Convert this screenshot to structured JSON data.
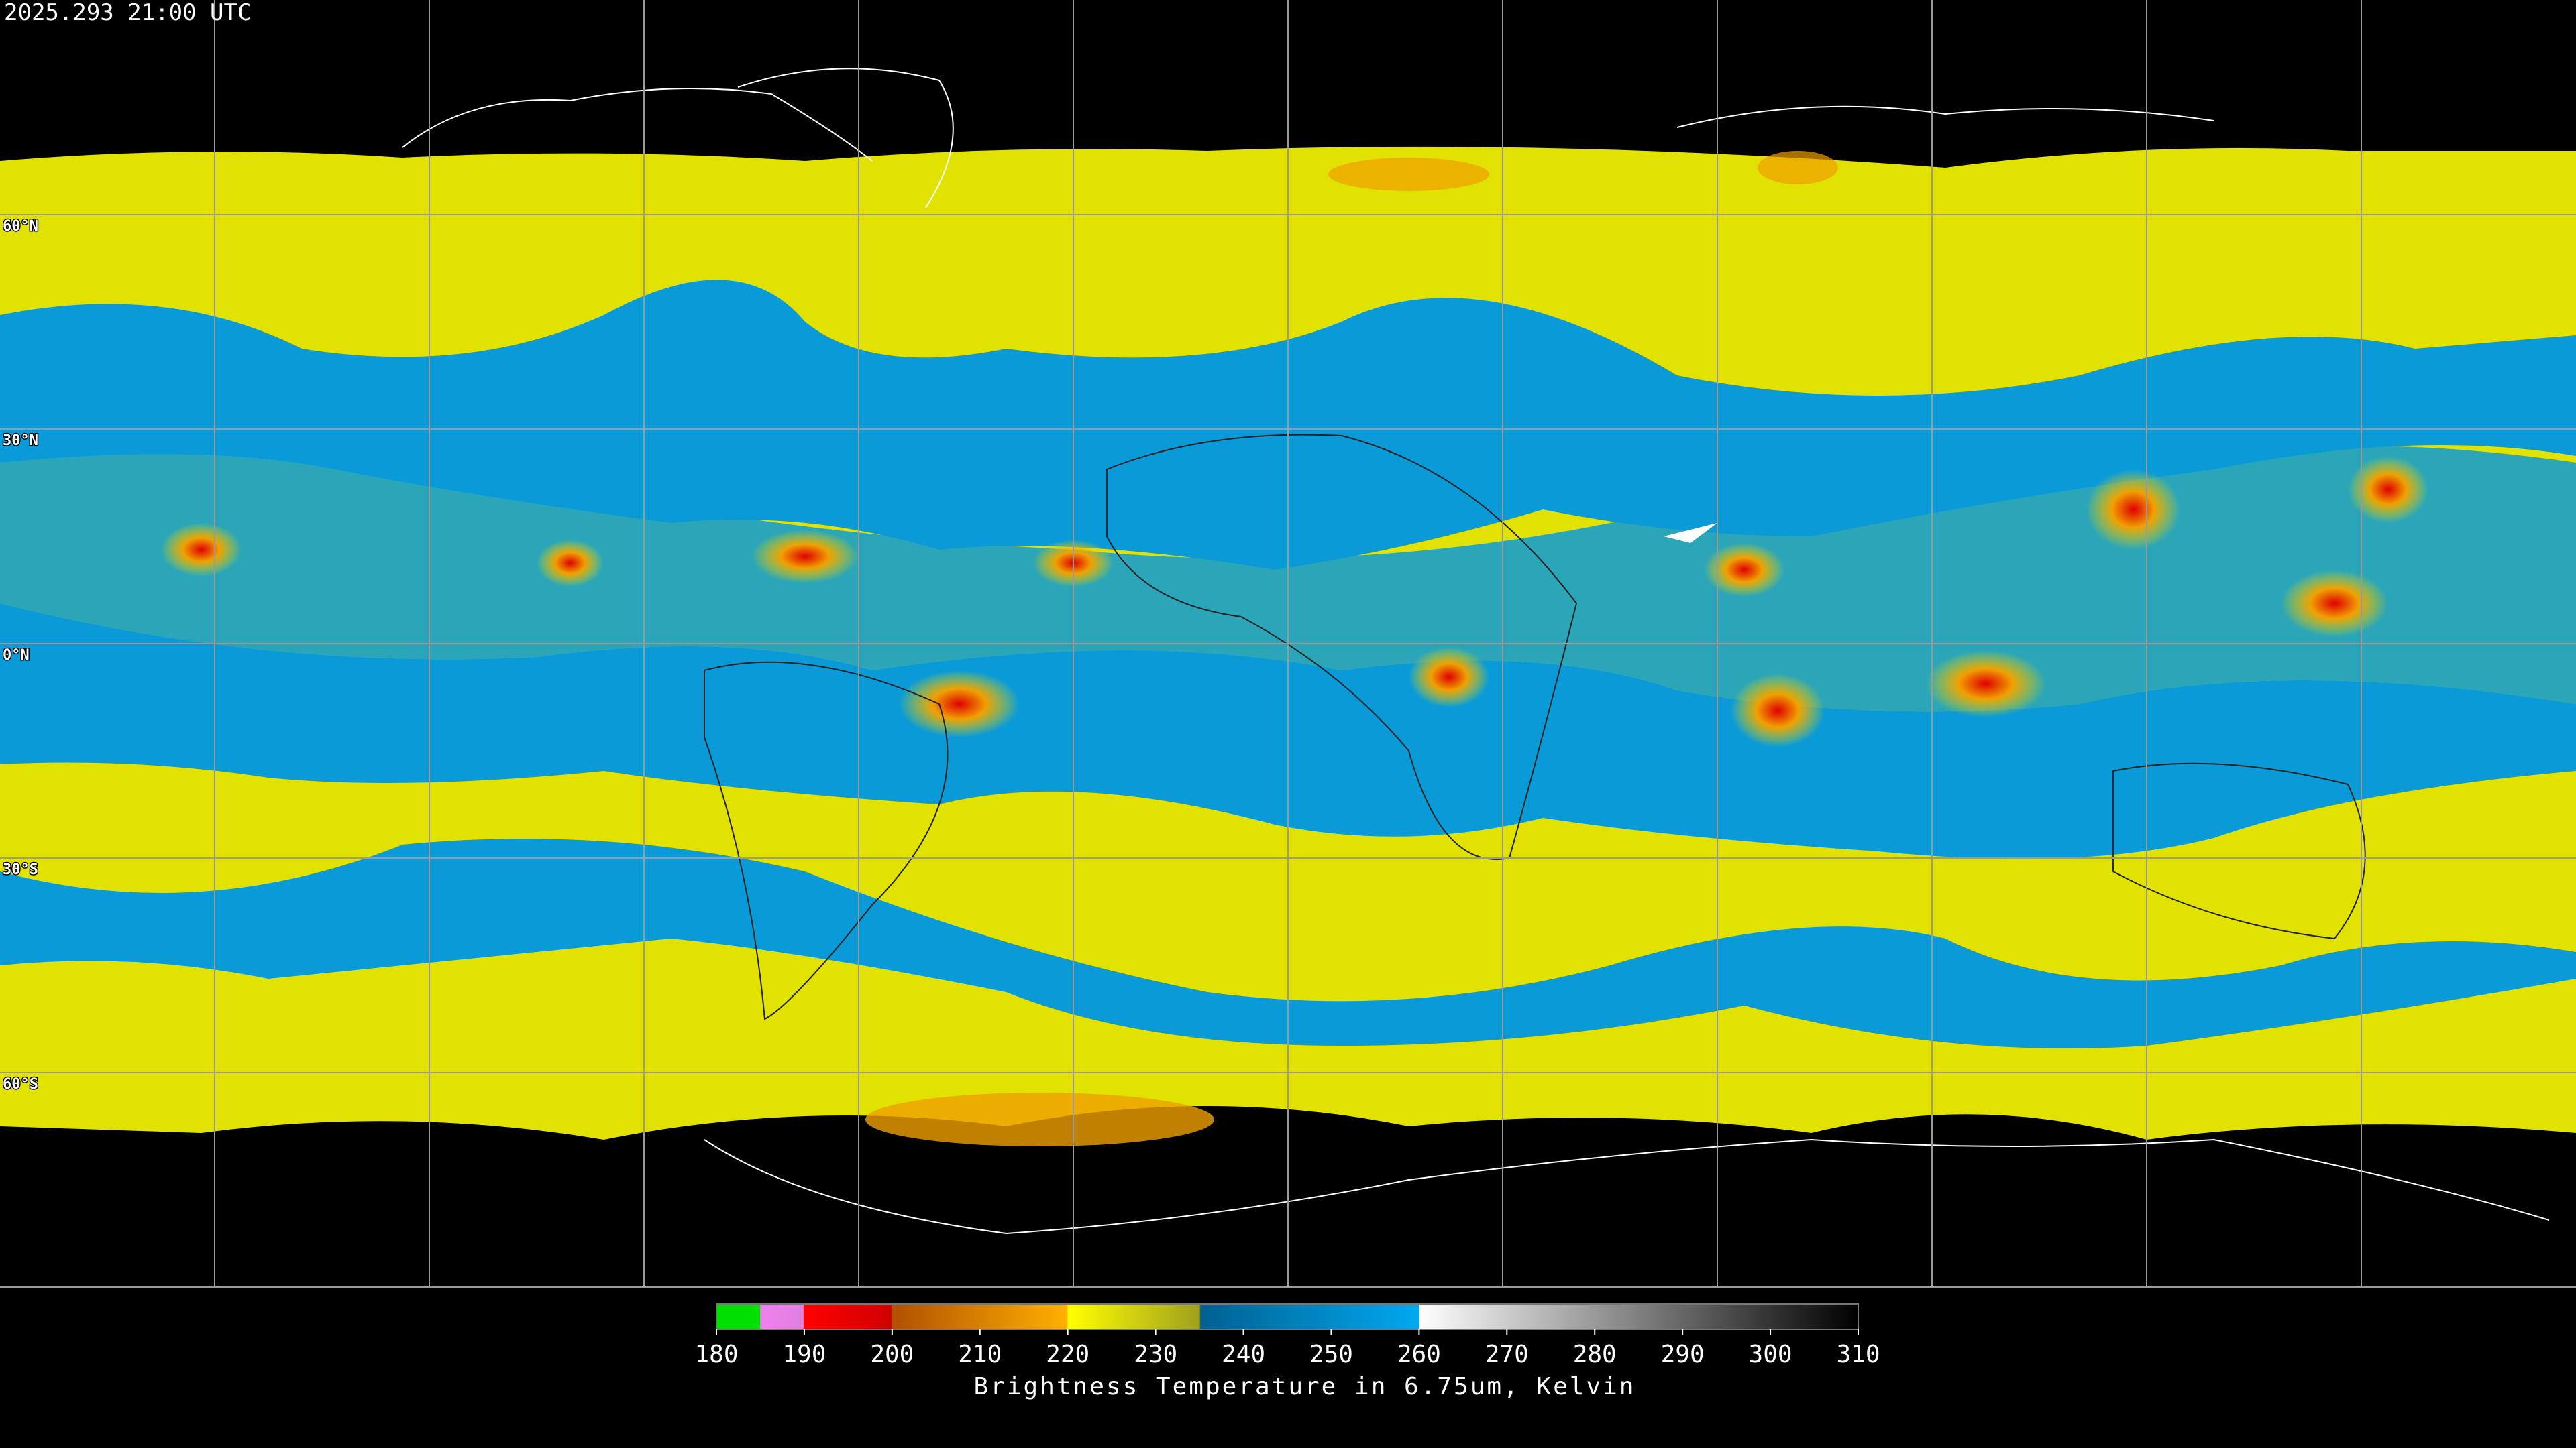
{
  "header": {
    "timestamp": "2025.293 21:00 UTC"
  },
  "map": {
    "lat_labels": [
      "60°N",
      "30°N",
      "0°N",
      "30°S",
      "60°S"
    ]
  },
  "colorbar": {
    "type": "colorbar",
    "title": "Brightness Temperature in 6.75um, Kelvin",
    "xlim": [
      180,
      310
    ],
    "xticks": [
      180,
      190,
      200,
      210,
      220,
      230,
      240,
      250,
      260,
      270,
      280,
      290,
      300,
      310
    ]
  }
}
